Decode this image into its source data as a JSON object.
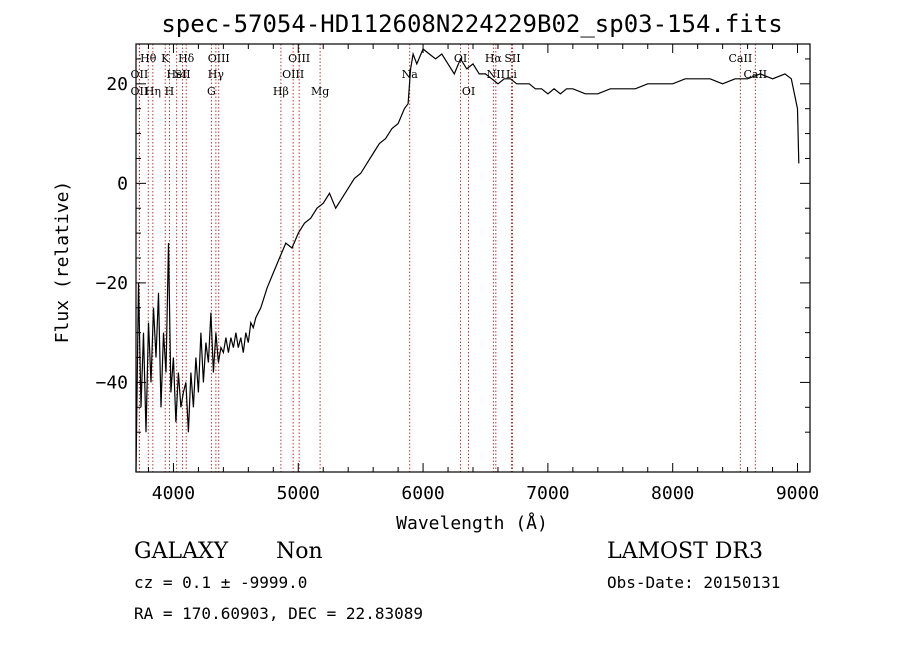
{
  "chart_data": {
    "type": "line",
    "title": "spec-57054-HD112608N224229B02_sp03-154.fits",
    "xlabel": "Wavelength (Å)",
    "ylabel": "Flux (relative)",
    "xlim": [
      3700,
      9100
    ],
    "ylim": [
      -58,
      28
    ],
    "x_ticks": [
      4000,
      5000,
      6000,
      7000,
      8000,
      9000
    ],
    "y_ticks": [
      -40,
      -20,
      0,
      20
    ],
    "grid": false,
    "series": [
      {
        "color": "#000000",
        "x": [
          3700,
          3720,
          3740,
          3760,
          3780,
          3800,
          3820,
          3840,
          3860,
          3880,
          3900,
          3920,
          3940,
          3960,
          3980,
          4000,
          4020,
          4040,
          4060,
          4080,
          4100,
          4120,
          4140,
          4160,
          4180,
          4200,
          4220,
          4240,
          4260,
          4280,
          4300,
          4320,
          4340,
          4360,
          4380,
          4400,
          4420,
          4440,
          4460,
          4480,
          4500,
          4520,
          4540,
          4560,
          4580,
          4600,
          4620,
          4640,
          4660,
          4680,
          4700,
          4750,
          4800,
          4850,
          4900,
          4950,
          5000,
          5050,
          5100,
          5150,
          5200,
          5250,
          5300,
          5350,
          5400,
          5450,
          5500,
          5550,
          5600,
          5650,
          5700,
          5750,
          5800,
          5850,
          5880,
          5900,
          5920,
          5950,
          6000,
          6050,
          6100,
          6150,
          6200,
          6250,
          6300,
          6350,
          6400,
          6450,
          6500,
          6550,
          6600,
          6650,
          6700,
          6750,
          6800,
          6850,
          6900,
          6950,
          7000,
          7050,
          7100,
          7150,
          7200,
          7300,
          7400,
          7500,
          7600,
          7700,
          7800,
          7900,
          8000,
          8100,
          8200,
          8300,
          8400,
          8500,
          8600,
          8700,
          8800,
          8900,
          8950,
          9000,
          9010
        ],
        "values": [
          -58,
          -20,
          -45,
          -30,
          -50,
          -28,
          -40,
          -25,
          -35,
          -22,
          -45,
          -30,
          -38,
          -12,
          -42,
          -35,
          -48,
          -38,
          -45,
          -42,
          -40,
          -50,
          -38,
          -45,
          -35,
          -42,
          -30,
          -40,
          -32,
          -36,
          -26,
          -38,
          -30,
          -36,
          -33,
          -34,
          -31,
          -34,
          -31,
          -33,
          -30,
          -33,
          -31,
          -34,
          -30,
          -32,
          -28,
          -29,
          -27,
          -26,
          -25,
          -21,
          -18,
          -15,
          -12,
          -13,
          -10,
          -8,
          -7,
          -5,
          -4,
          -2,
          -5,
          -3,
          -1,
          1,
          2,
          4,
          6,
          8,
          9,
          11,
          12,
          15,
          16,
          23,
          26,
          24,
          27,
          26,
          25,
          26,
          24,
          22,
          25,
          23,
          24,
          22,
          22,
          21,
          20,
          21,
          21,
          20,
          20,
          20,
          19,
          19,
          18,
          19,
          18,
          19,
          19,
          18,
          18,
          19,
          19,
          19,
          20,
          20,
          20,
          21,
          21,
          21,
          20,
          21,
          21,
          22,
          21,
          22,
          21,
          15,
          4
        ]
      }
    ],
    "line_markers": [
      {
        "name": "OII",
        "wavelength": 3727,
        "row": 2
      },
      {
        "name": "Hθ",
        "wavelength": 3798,
        "row": 0
      },
      {
        "name": "OII",
        "wavelength": 3727,
        "row": 1
      },
      {
        "name": "K",
        "wavelength": 3934,
        "row": 0
      },
      {
        "name": "H",
        "wavelength": 3968,
        "row": 2
      },
      {
        "name": "HeI",
        "wavelength": 4026,
        "row": 1
      },
      {
        "name": "Hη",
        "wavelength": 3835,
        "row": 2
      },
      {
        "name": "Hδ",
        "wavelength": 4102,
        "row": 0
      },
      {
        "name": "SII",
        "wavelength": 4072,
        "row": 1
      },
      {
        "name": "OIII",
        "wavelength": 4363,
        "row": 0
      },
      {
        "name": "Hγ",
        "wavelength": 4340,
        "row": 1
      },
      {
        "name": "G",
        "wavelength": 4304,
        "row": 2
      },
      {
        "name": "Hβ",
        "wavelength": 4861,
        "row": 2
      },
      {
        "name": "OIII",
        "wavelength": 4959,
        "row": 1
      },
      {
        "name": "OIII",
        "wavelength": 5007,
        "row": 0
      },
      {
        "name": "Mg",
        "wavelength": 5175,
        "row": 2
      },
      {
        "name": "Na",
        "wavelength": 5893,
        "row": 1
      },
      {
        "name": "OI",
        "wavelength": 6300,
        "row": 0
      },
      {
        "name": "OI",
        "wavelength": 6364,
        "row": 2
      },
      {
        "name": "Hα",
        "wavelength": 6563,
        "row": 0
      },
      {
        "name": "NII",
        "wavelength": 6583,
        "row": 1
      },
      {
        "name": "SII",
        "wavelength": 6716,
        "row": 0
      },
      {
        "name": "Li",
        "wavelength": 6708,
        "row": 1
      },
      {
        "name": "CaII",
        "wavelength": 8542,
        "row": 0
      },
      {
        "name": "CaII",
        "wavelength": 8662,
        "row": 1
      }
    ]
  },
  "info": {
    "class": "GALAXY",
    "subclass": "Non",
    "survey": "LAMOST DR3",
    "cz": "cz = 0.1 ± -9999.0",
    "obs_date": "Obs-Date: 20150131",
    "radec": "RA = 170.60903, DEC =  22.83089"
  },
  "colors": {
    "spectrum": "#000000",
    "marker": "#b22222",
    "axes": "#000000"
  }
}
